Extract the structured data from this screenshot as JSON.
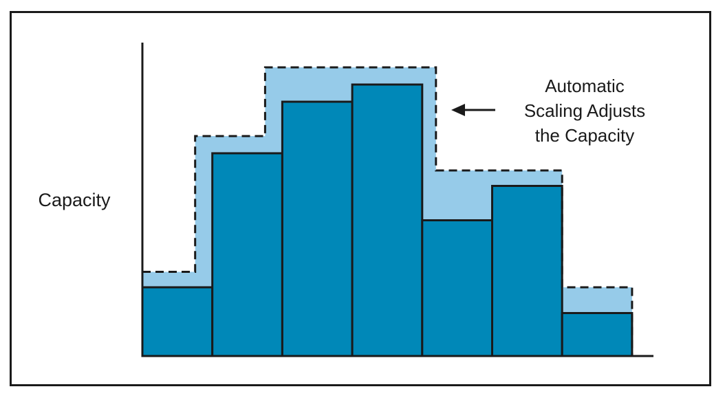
{
  "chart_data": {
    "type": "bar",
    "title": "",
    "xlabel": "",
    "ylabel": "Capacity",
    "annotation": {
      "lines": [
        "Automatic",
        "Scaling Adjusts",
        "the Capacity"
      ]
    },
    "series": [
      {
        "name": "",
        "values": [
          40,
          118,
          148,
          158,
          79,
          99,
          25
        ]
      },
      {
        "name": "",
        "values": [
          49,
          128,
          168,
          168,
          108,
          108,
          40
        ]
      }
    ],
    "categories": [
      "",
      "",
      "",
      "",
      "",
      "",
      ""
    ],
    "ylim": [
      0,
      180
    ],
    "grid": false,
    "legend": "none",
    "colors": {
      "demand_bars": "#0088b8",
      "capacity_band": "#96cbe9",
      "outline": "#1a1a1a"
    }
  }
}
